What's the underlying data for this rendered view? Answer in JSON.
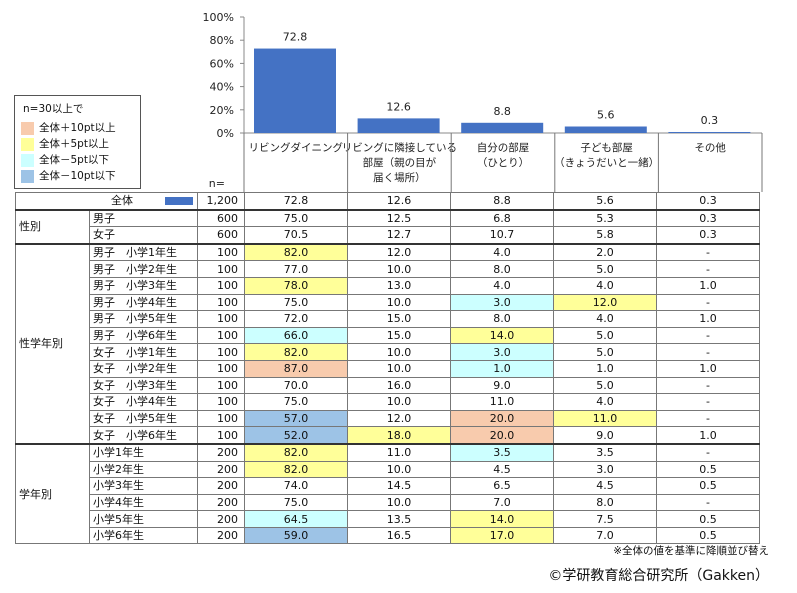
{
  "chart_data": {
    "type": "bar",
    "categories": [
      "リビングダイニング",
      "リビングに隣接している部屋（親の目が届く場所）",
      "自分の部屋（ひとり）",
      "子ども部屋（きょうだいと一緒）",
      "その他"
    ],
    "category_lines": [
      [
        "リビングダイニング"
      ],
      [
        "リビングに隣接している",
        "部屋（親の目が",
        "届く場所）"
      ],
      [
        "自分の部屋",
        "（ひとり）"
      ],
      [
        "子ども部屋",
        "（きょうだいと一緒）"
      ],
      [
        "その他"
      ]
    ],
    "values": [
      72.8,
      12.6,
      8.8,
      5.6,
      0.3
    ],
    "value_labels": [
      "72.8",
      "12.6",
      "8.8",
      "5.6",
      "0.3"
    ],
    "ylim": [
      0,
      100
    ],
    "yticks": [
      "0%",
      "20%",
      "40%",
      "60%",
      "80%",
      "100%"
    ],
    "bar_color": "#4472c4"
  },
  "legend": {
    "title": "n=30以上で",
    "items": [
      {
        "label": "全体＋10pt以上",
        "color": "#f8cbad"
      },
      {
        "label": "全体＋5pt以上",
        "color": "#ffff99"
      },
      {
        "label": "全体－5pt以下",
        "color": "#ccffff"
      },
      {
        "label": "全体－10pt以下",
        "color": "#9dc3e6"
      }
    ]
  },
  "n_header": "n=",
  "total_row": {
    "label": "全体",
    "n": "1,200",
    "values": [
      "72.8",
      "12.6",
      "8.8",
      "5.6",
      "0.3"
    ]
  },
  "groups": [
    {
      "name": "性別",
      "rows": [
        {
          "label": "男子",
          "n": "600",
          "values": [
            "75.0",
            "12.5",
            "6.8",
            "5.3",
            "0.3"
          ],
          "hl": [
            "",
            "",
            "",
            "",
            ""
          ]
        },
        {
          "label": "女子",
          "n": "600",
          "values": [
            "70.5",
            "12.7",
            "10.7",
            "5.8",
            "0.3"
          ],
          "hl": [
            "",
            "",
            "",
            "",
            ""
          ]
        }
      ]
    },
    {
      "name": "性学年別",
      "rows": [
        {
          "label": "男子　小学1年生",
          "n": "100",
          "values": [
            "82.0",
            "12.0",
            "4.0",
            "2.0",
            "-"
          ],
          "hl": [
            "y",
            "",
            "",
            "",
            ""
          ]
        },
        {
          "label": "男子　小学2年生",
          "n": "100",
          "values": [
            "77.0",
            "10.0",
            "8.0",
            "5.0",
            "-"
          ],
          "hl": [
            "",
            "",
            "",
            "",
            ""
          ]
        },
        {
          "label": "男子　小学3年生",
          "n": "100",
          "values": [
            "78.0",
            "13.0",
            "4.0",
            "4.0",
            "1.0"
          ],
          "hl": [
            "y",
            "",
            "",
            "",
            ""
          ]
        },
        {
          "label": "男子　小学4年生",
          "n": "100",
          "values": [
            "75.0",
            "10.0",
            "3.0",
            "12.0",
            "-"
          ],
          "hl": [
            "",
            "",
            "c",
            "y",
            ""
          ]
        },
        {
          "label": "男子　小学5年生",
          "n": "100",
          "values": [
            "72.0",
            "15.0",
            "8.0",
            "4.0",
            "1.0"
          ],
          "hl": [
            "",
            "",
            "",
            "",
            ""
          ]
        },
        {
          "label": "男子　小学6年生",
          "n": "100",
          "values": [
            "66.0",
            "15.0",
            "14.0",
            "5.0",
            "-"
          ],
          "hl": [
            "c",
            "",
            "y",
            "",
            ""
          ]
        },
        {
          "label": "女子　小学1年生",
          "n": "100",
          "values": [
            "82.0",
            "10.0",
            "3.0",
            "5.0",
            "-"
          ],
          "hl": [
            "y",
            "",
            "c",
            "",
            ""
          ]
        },
        {
          "label": "女子　小学2年生",
          "n": "100",
          "values": [
            "87.0",
            "10.0",
            "1.0",
            "1.0",
            "1.0"
          ],
          "hl": [
            "o",
            "",
            "c",
            "",
            ""
          ]
        },
        {
          "label": "女子　小学3年生",
          "n": "100",
          "values": [
            "70.0",
            "16.0",
            "9.0",
            "5.0",
            "-"
          ],
          "hl": [
            "",
            "",
            "",
            "",
            ""
          ]
        },
        {
          "label": "女子　小学4年生",
          "n": "100",
          "values": [
            "75.0",
            "10.0",
            "11.0",
            "4.0",
            "-"
          ],
          "hl": [
            "",
            "",
            "",
            "",
            ""
          ]
        },
        {
          "label": "女子　小学5年生",
          "n": "100",
          "values": [
            "57.0",
            "12.0",
            "20.0",
            "11.0",
            "-"
          ],
          "hl": [
            "b",
            "",
            "o",
            "y",
            ""
          ]
        },
        {
          "label": "女子　小学6年生",
          "n": "100",
          "values": [
            "52.0",
            "18.0",
            "20.0",
            "9.0",
            "1.0"
          ],
          "hl": [
            "b",
            "y",
            "o",
            "",
            ""
          ]
        }
      ]
    },
    {
      "name": "学年別",
      "rows": [
        {
          "label": "小学1年生",
          "n": "200",
          "values": [
            "82.0",
            "11.0",
            "3.5",
            "3.5",
            "-"
          ],
          "hl": [
            "y",
            "",
            "c",
            "",
            ""
          ]
        },
        {
          "label": "小学2年生",
          "n": "200",
          "values": [
            "82.0",
            "10.0",
            "4.5",
            "3.0",
            "0.5"
          ],
          "hl": [
            "y",
            "",
            "",
            "",
            ""
          ]
        },
        {
          "label": "小学3年生",
          "n": "200",
          "values": [
            "74.0",
            "14.5",
            "6.5",
            "4.5",
            "0.5"
          ],
          "hl": [
            "",
            "",
            "",
            "",
            ""
          ]
        },
        {
          "label": "小学4年生",
          "n": "200",
          "values": [
            "75.0",
            "10.0",
            "7.0",
            "8.0",
            "-"
          ],
          "hl": [
            "",
            "",
            "",
            "",
            ""
          ]
        },
        {
          "label": "小学5年生",
          "n": "200",
          "values": [
            "64.5",
            "13.5",
            "14.0",
            "7.5",
            "0.5"
          ],
          "hl": [
            "c",
            "",
            "y",
            "",
            ""
          ]
        },
        {
          "label": "小学6年生",
          "n": "200",
          "values": [
            "59.0",
            "16.5",
            "17.0",
            "7.0",
            "0.5"
          ],
          "hl": [
            "b",
            "",
            "y",
            "",
            ""
          ]
        }
      ]
    }
  ],
  "note": "※全体の値を基準に降順並び替え",
  "copyright": "©学研教育総合研究所（Gakken）"
}
